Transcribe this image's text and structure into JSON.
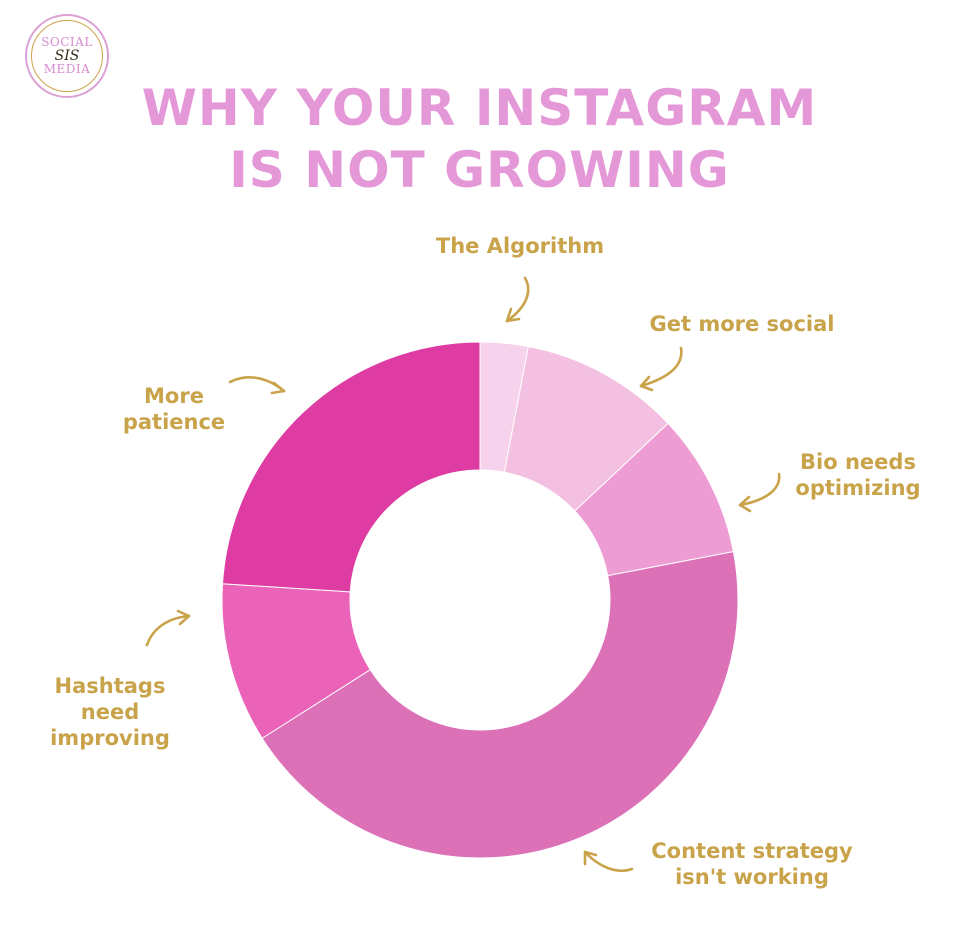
{
  "logo": {
    "line1": "SOCIAL",
    "line2": "SIS",
    "line3": "MEDIA"
  },
  "title": {
    "line1": "WHY YOUR INSTAGRAM",
    "line2": "IS NOT GROWING"
  },
  "colors": {
    "title": "#e598d8",
    "label": "#c9a34a",
    "arrow": "#c9a34a"
  },
  "chart_data": {
    "type": "pie",
    "donut": true,
    "start_angle_deg": 0,
    "slices": [
      {
        "label_lines": [
          "The Algorithm"
        ],
        "value": 3,
        "color": "#f7d2ec"
      },
      {
        "label_lines": [
          "Get more social"
        ],
        "value": 10,
        "color": "#f3c0e2"
      },
      {
        "label_lines": [
          "Bio needs",
          "optimizing"
        ],
        "value": 9,
        "color": "#ee9dd4"
      },
      {
        "label_lines": [
          "Content strategy",
          "isn't working"
        ],
        "value": 44,
        "color": "#dc71b8"
      },
      {
        "label_lines": [
          "Hashtags",
          "need",
          "improving"
        ],
        "value": 10,
        "color": "#ea63b9"
      },
      {
        "label_lines": [
          "More",
          "patience"
        ],
        "value": 24,
        "color": "#de3ca2"
      }
    ]
  }
}
